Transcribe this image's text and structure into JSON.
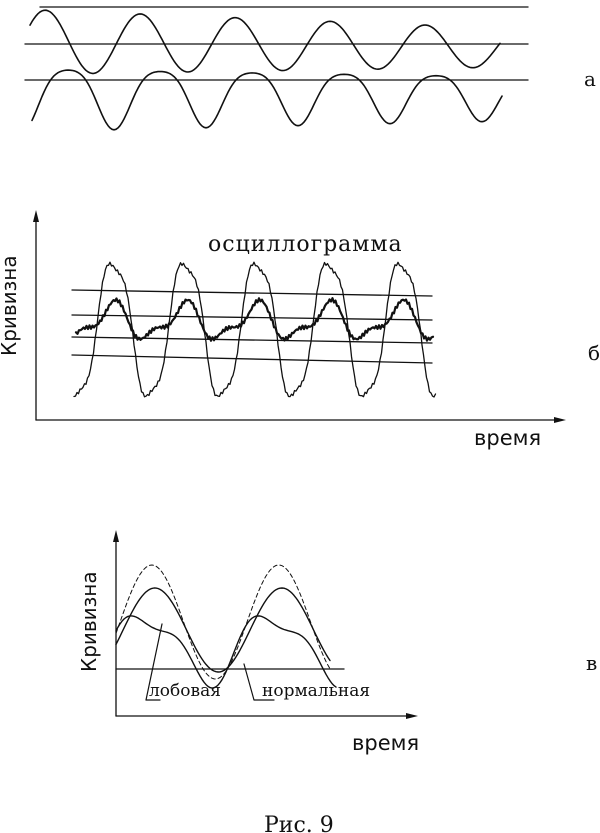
{
  "figure": {
    "caption": "Рис. 9",
    "panels": {
      "a": {
        "letter": "а"
      },
      "b": {
        "letter": "б",
        "title": "осциллограмма",
        "ylabel": "Кривизна",
        "xlabel": "время"
      },
      "c": {
        "letter": "в",
        "ylabel": "Кривизна",
        "xlabel": "время",
        "label_frontal": "лобовая",
        "label_normal": "нормальная"
      }
    }
  }
}
